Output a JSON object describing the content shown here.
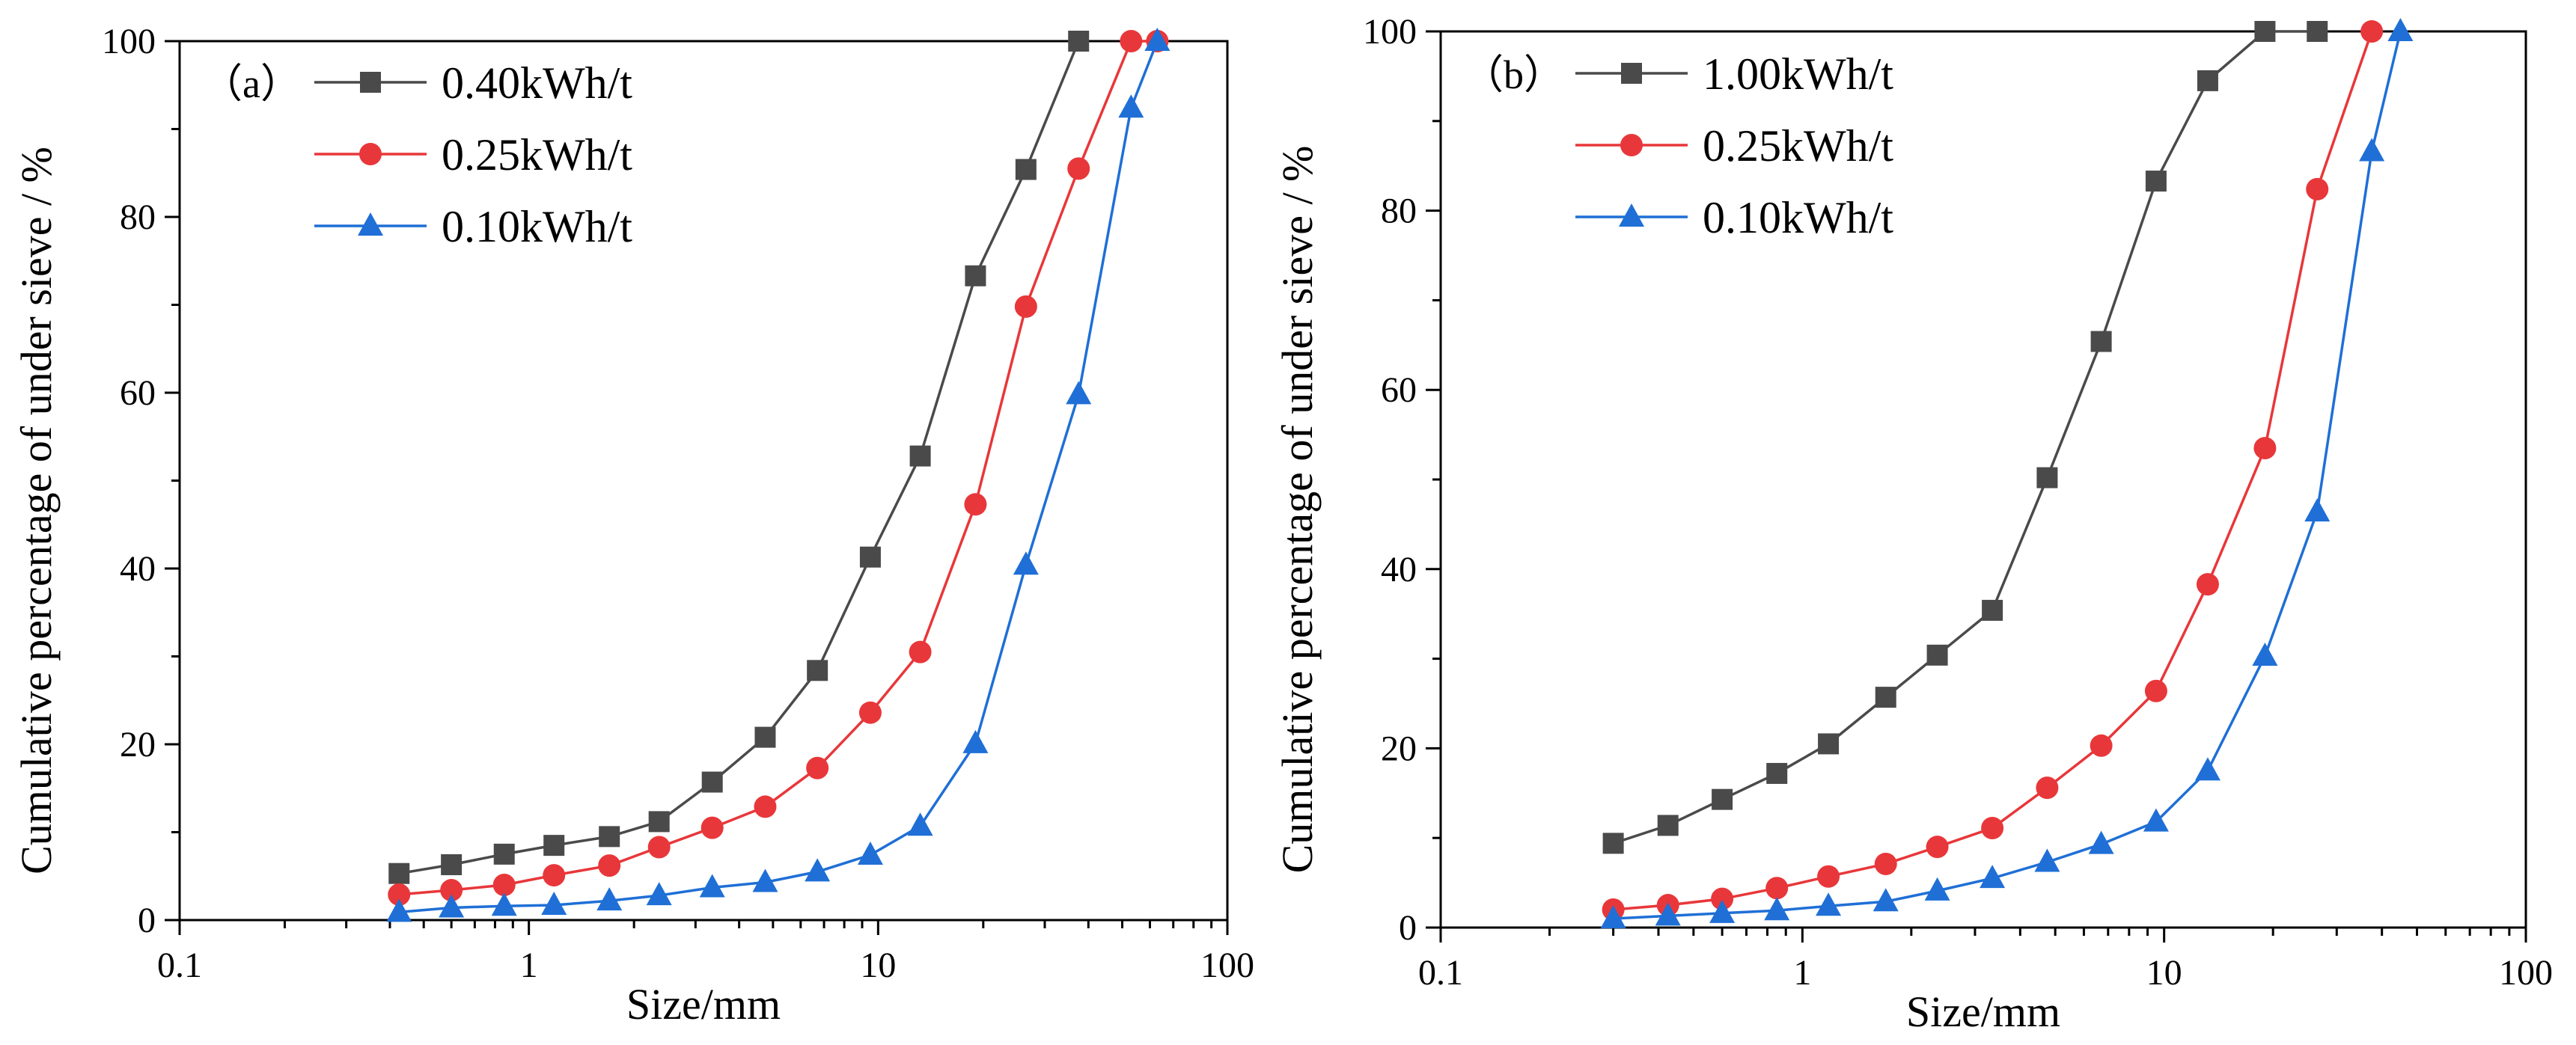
{
  "chart_data": [
    {
      "type": "line",
      "panel_label": "（a）",
      "x_scale": "log",
      "xlim": [
        0.1,
        100
      ],
      "ylim": [
        0,
        100
      ],
      "xlabel": "Size/mm",
      "ylabel": "Cumulative percentage of under sieve / %",
      "x_ticks": [
        "0.1",
        "1",
        "10",
        "100"
      ],
      "y_ticks": [
        "0",
        "20",
        "40",
        "60",
        "80",
        "100"
      ],
      "legend_position": "top-left",
      "series": [
        {
          "name": "0.40kWh/t",
          "color": "#4a4a4a",
          "marker": "square",
          "x": [
            0.425,
            0.6,
            0.85,
            1.18,
            1.7,
            2.36,
            3.35,
            4.75,
            6.7,
            9.5,
            13.2,
            19,
            26.5,
            37.5
          ],
          "y": [
            5.3,
            6.3,
            7.5,
            8.5,
            9.5,
            11.2,
            15.7,
            20.8,
            28.4,
            41.3,
            52.8,
            73.3,
            85.4,
            100
          ]
        },
        {
          "name": "0.25kWh/t",
          "color": "#e8373a",
          "marker": "circle",
          "x": [
            0.425,
            0.6,
            0.85,
            1.18,
            1.7,
            2.36,
            3.35,
            4.75,
            6.7,
            9.5,
            13.2,
            19,
            26.5,
            37.5,
            53,
            63
          ],
          "y": [
            2.9,
            3.4,
            4.0,
            5.1,
            6.2,
            8.3,
            10.5,
            12.9,
            17.3,
            23.6,
            30.5,
            47.3,
            69.8,
            85.5,
            100,
            100
          ]
        },
        {
          "name": "0.10kWh/t",
          "color": "#1f6fd6",
          "marker": "triangle",
          "x": [
            0.425,
            0.6,
            0.85,
            1.18,
            1.7,
            2.36,
            3.35,
            4.75,
            6.7,
            9.5,
            13.2,
            19,
            26.5,
            37.5,
            53,
            63
          ],
          "y": [
            0.9,
            1.4,
            1.6,
            1.7,
            2.2,
            2.8,
            3.7,
            4.3,
            5.5,
            7.4,
            10.7,
            20.1,
            40.4,
            59.8,
            92.4,
            100
          ]
        }
      ]
    },
    {
      "type": "line",
      "panel_label": "（b）",
      "x_scale": "log",
      "xlim": [
        0.1,
        100
      ],
      "ylim": [
        0,
        100
      ],
      "xlabel": "Size/mm",
      "ylabel": "Cumulative percentage of under sieve / %",
      "x_ticks": [
        "0.1",
        "1",
        "10",
        "100"
      ],
      "y_ticks": [
        "0",
        "20",
        "40",
        "60",
        "80",
        "100"
      ],
      "legend_position": "top-left",
      "series": [
        {
          "name": "1.00kWh/t",
          "color": "#4a4a4a",
          "marker": "square",
          "x": [
            0.3,
            0.425,
            0.6,
            0.85,
            1.18,
            1.7,
            2.36,
            3.35,
            4.75,
            6.7,
            9.5,
            13.2,
            19,
            26.5
          ],
          "y": [
            9.4,
            11.4,
            14.3,
            17.2,
            20.5,
            25.7,
            30.4,
            35.4,
            50.2,
            65.4,
            83.3,
            94.5,
            100,
            100
          ]
        },
        {
          "name": "0.25kWh/t",
          "color": "#e8373a",
          "marker": "circle",
          "x": [
            0.3,
            0.425,
            0.6,
            0.85,
            1.18,
            1.7,
            2.36,
            3.35,
            4.75,
            6.7,
            9.5,
            13.2,
            19,
            26.5,
            37.5
          ],
          "y": [
            2.0,
            2.5,
            3.2,
            4.4,
            5.7,
            7.1,
            9.0,
            11.1,
            15.6,
            20.3,
            26.4,
            38.3,
            53.5,
            82.4,
            100
          ]
        },
        {
          "name": "0.10kWh/t",
          "color": "#1f6fd6",
          "marker": "triangle",
          "x": [
            0.3,
            0.425,
            0.6,
            0.85,
            1.18,
            1.7,
            2.36,
            3.35,
            4.75,
            6.7,
            9.5,
            13.2,
            19,
            26.5,
            37.5,
            45
          ],
          "y": [
            1.0,
            1.3,
            1.6,
            1.9,
            2.4,
            2.9,
            4.1,
            5.5,
            7.3,
            9.3,
            11.8,
            17.5,
            30.3,
            46.4,
            86.6,
            100
          ]
        }
      ]
    }
  ]
}
